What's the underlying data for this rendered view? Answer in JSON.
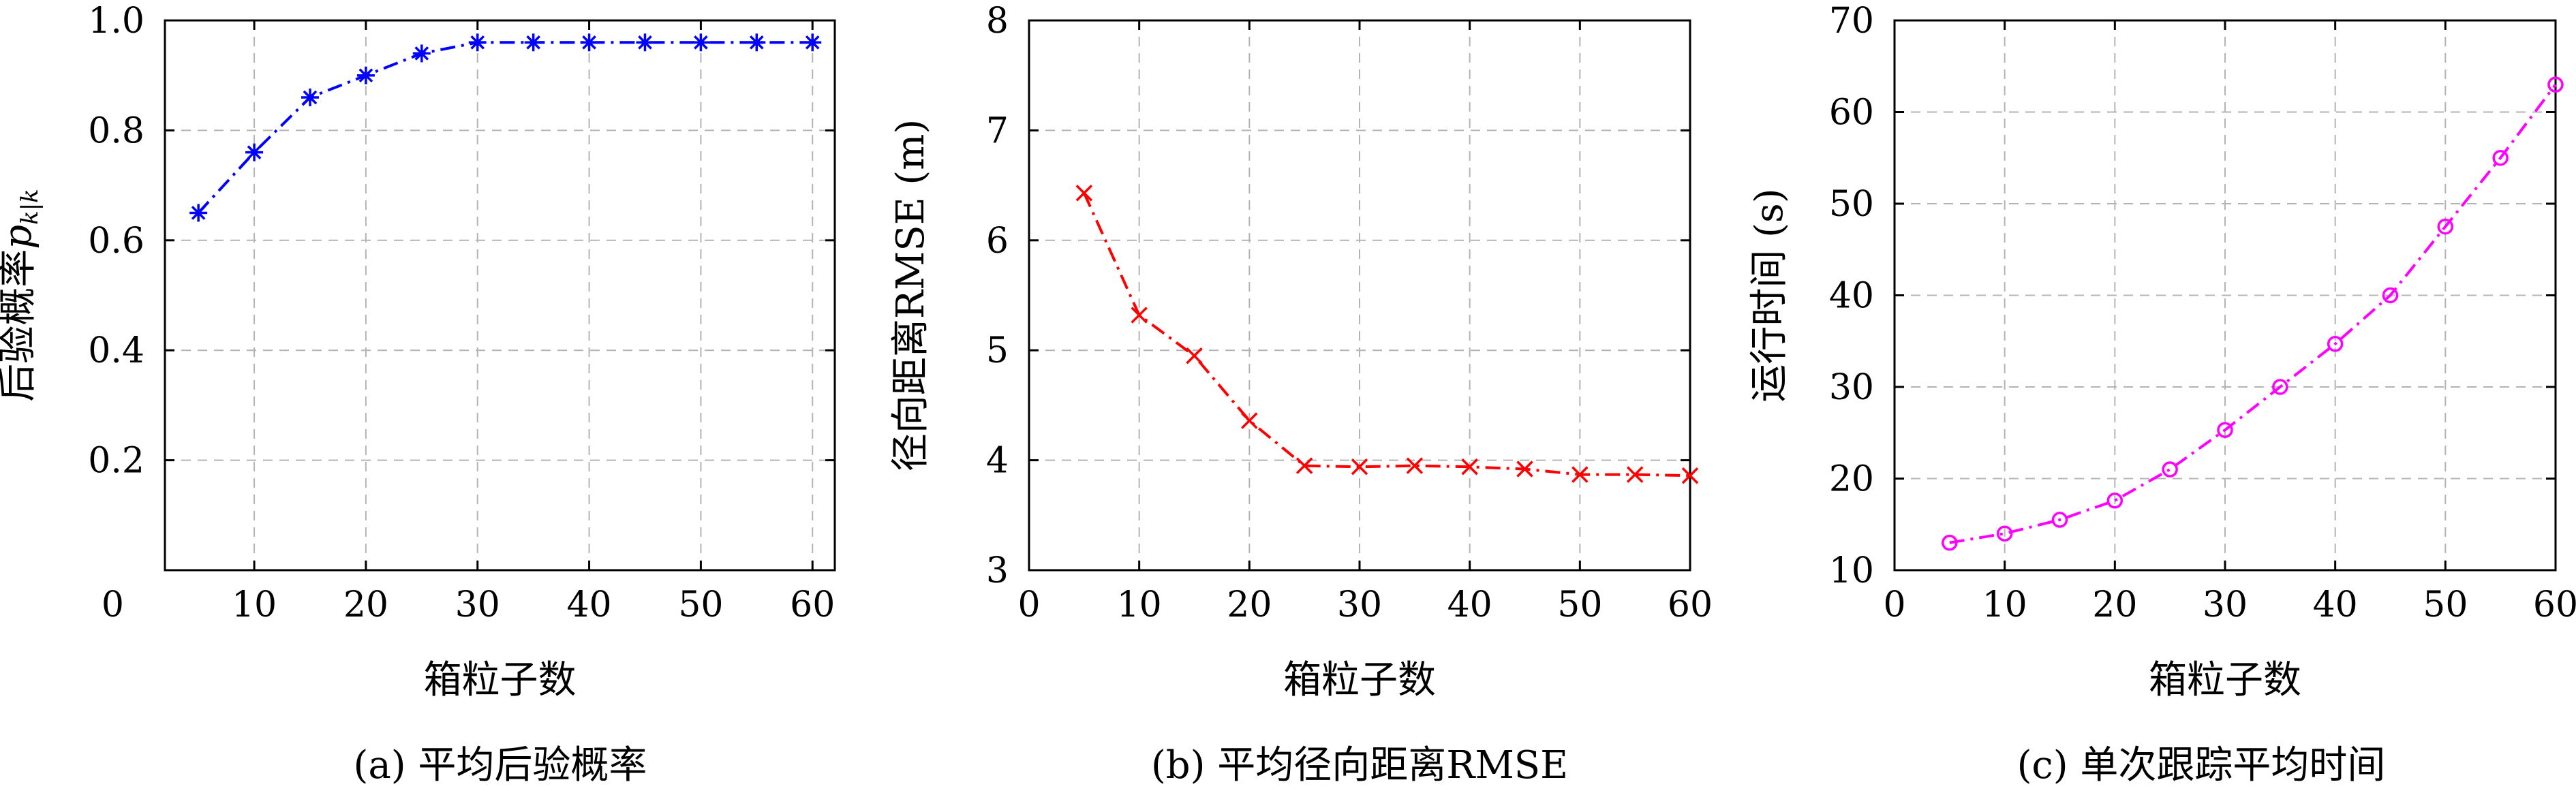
{
  "chart_data": [
    {
      "type": "line",
      "caption": "(a) 平均后验概率",
      "xlabel": "箱粒子数",
      "ylabel": "后验概率",
      "ylabel_math": "p",
      "ylabel_sub": "k|k",
      "xlim": [
        2,
        62
      ],
      "ylim": [
        0,
        1.0
      ],
      "xticks": [
        10,
        20,
        30,
        40,
        50,
        60
      ],
      "yticks": [
        0.2,
        0.4,
        0.6,
        0.8,
        1.0
      ],
      "ytick_labels": [
        "0.2",
        "0.4",
        "0.6",
        "0.8",
        "1.0"
      ],
      "origin_label": "0",
      "grid": true,
      "color": "#0000ff",
      "marker": "asterisk",
      "linestyle": "dash-dot",
      "x": [
        5,
        10,
        15,
        20,
        25,
        30,
        35,
        40,
        45,
        50,
        55,
        60
      ],
      "y": [
        0.65,
        0.76,
        0.86,
        0.9,
        0.94,
        0.96,
        0.96,
        0.96,
        0.96,
        0.96,
        0.96,
        0.96
      ]
    },
    {
      "type": "line",
      "caption": "(b) 平均径向距离RMSE",
      "xlabel": "箱粒子数",
      "ylabel": "径向距离RMSE (m)",
      "xlim": [
        0,
        60
      ],
      "ylim": [
        3,
        8
      ],
      "xticks": [
        0,
        10,
        20,
        30,
        40,
        50,
        60
      ],
      "yticks": [
        3,
        4,
        5,
        6,
        7,
        8
      ],
      "ytick_labels": [
        "3",
        "4",
        "5",
        "6",
        "7",
        "8"
      ],
      "grid": true,
      "color": "#ff0000",
      "marker": "x",
      "linestyle": "dash-dot",
      "x": [
        5,
        10,
        15,
        20,
        25,
        30,
        35,
        40,
        45,
        50,
        55,
        60
      ],
      "y": [
        6.43,
        5.32,
        4.95,
        4.36,
        3.95,
        3.94,
        3.95,
        3.94,
        3.92,
        3.87,
        3.87,
        3.86
      ]
    },
    {
      "type": "line",
      "caption": "(c) 单次跟踪平均时间",
      "xlabel": "箱粒子数",
      "ylabel": "运行时间 (s)",
      "xlim": [
        0,
        60
      ],
      "ylim": [
        10,
        70
      ],
      "xticks": [
        0,
        10,
        20,
        30,
        40,
        50,
        60
      ],
      "yticks": [
        10,
        20,
        30,
        40,
        50,
        60,
        70
      ],
      "ytick_labels": [
        "10",
        "20",
        "30",
        "40",
        "50",
        "60",
        "70"
      ],
      "grid": true,
      "color": "#ff00ff",
      "marker": "circle",
      "linestyle": "dash-dot",
      "x": [
        5,
        10,
        15,
        20,
        25,
        30,
        35,
        40,
        45,
        50,
        55,
        60
      ],
      "y": [
        13.0,
        14.0,
        15.5,
        17.6,
        21.0,
        25.3,
        30.0,
        34.7,
        40.0,
        47.5,
        55.0,
        63.0
      ]
    }
  ]
}
